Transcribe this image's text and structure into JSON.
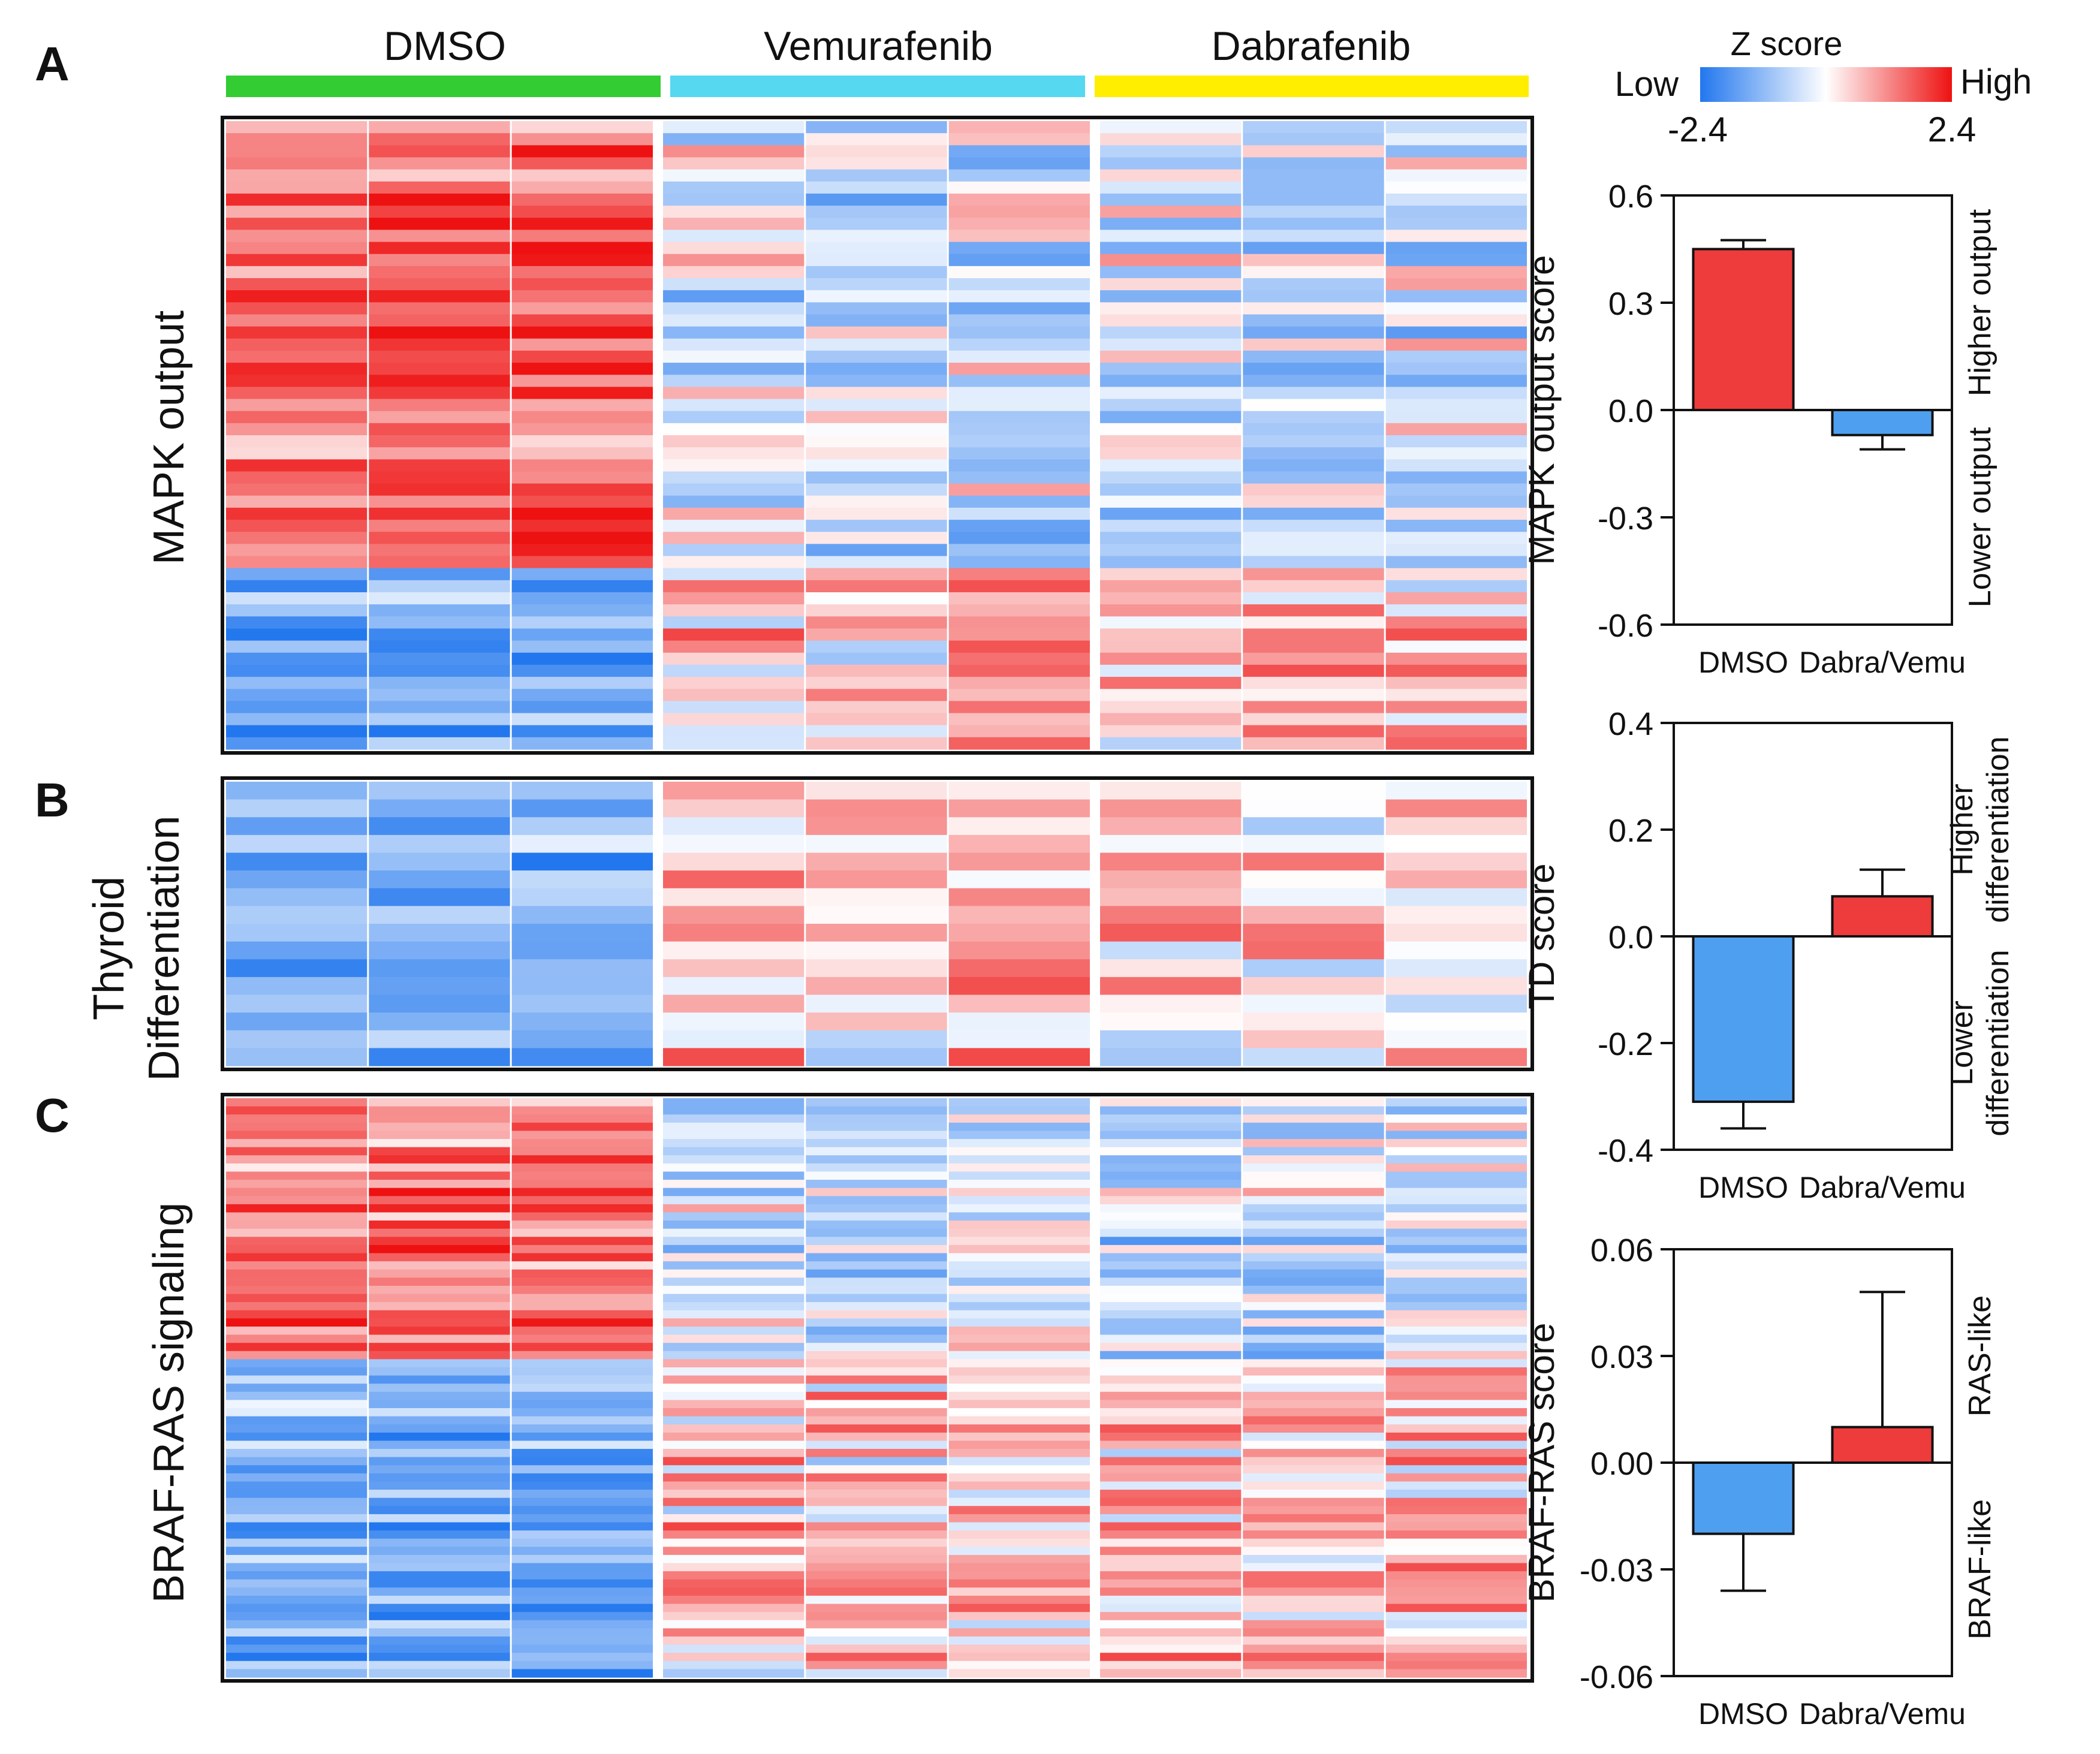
{
  "figure": {
    "groups": [
      {
        "name": "DMSO",
        "color": "#33cc33"
      },
      {
        "name": "Vemurafenib",
        "color": "#55d8f0"
      },
      {
        "name": "Dabrafenib",
        "color": "#ffee00"
      }
    ],
    "legend": {
      "title": "Z score",
      "low_label": "Low",
      "high_label": "High",
      "min_label": "-2.4",
      "max_label": "2.4",
      "low_color": "#2277ee",
      "mid_color": "#ffffff",
      "high_color": "#ee1111",
      "min": -2.4,
      "max": 2.4
    }
  },
  "chart_data": [
    {
      "type": "heatmap",
      "panel_letter": "A",
      "ylabel": "MAPK output",
      "columns": [
        "DMSO",
        "DMSO",
        "DMSO",
        "Vemurafenib",
        "Vemurafenib",
        "Vemurafenib",
        "Dabrafenib",
        "Dabrafenib",
        "Dabrafenib"
      ],
      "n_rows": 52,
      "pattern": "genes 1-37 high in DMSO and low in Vemurafenib/Dabrafenib; genes 38-52 low in DMSO and high in Vemurafenib/Dabrafenib",
      "value_range": [
        -2.4,
        2.4
      ]
    },
    {
      "type": "heatmap",
      "panel_letter": "B",
      "ylabel": [
        "Thyroid",
        "Differentiation"
      ],
      "columns": [
        "DMSO",
        "DMSO",
        "DMSO",
        "Vemurafenib",
        "Vemurafenib",
        "Vemurafenib",
        "Dabrafenib",
        "Dabrafenib",
        "Dabrafenib"
      ],
      "n_rows": 16,
      "pattern": "low in DMSO, high in Vemurafenib and Dabrafenib",
      "value_range": [
        -2.4,
        2.4
      ]
    },
    {
      "type": "heatmap",
      "panel_letter": "C",
      "ylabel": "BRAF-RAS signaling",
      "columns": [
        "DMSO",
        "DMSO",
        "DMSO",
        "Vemurafenib",
        "Vemurafenib",
        "Vemurafenib",
        "Dabrafenib",
        "Dabrafenib",
        "Dabrafenib"
      ],
      "n_rows": 71,
      "pattern": "genes 1-32 high in DMSO and low in treatments; genes 33-71 low in DMSO and high in treatments",
      "value_range": [
        -2.4,
        2.4
      ]
    },
    {
      "type": "bar",
      "ylabel": "MAPK output score",
      "categories": [
        "DMSO",
        "Dabra/Vemu"
      ],
      "values": [
        0.45,
        -0.07
      ],
      "errors": [
        0.025,
        0.04
      ],
      "colors": [
        "#ee3b3b",
        "#4f9ff0"
      ],
      "ylim": [
        -0.6,
        0.6
      ],
      "ticks": [
        0.6,
        0.3,
        0.0,
        -0.3,
        -0.6
      ],
      "tick_labels": [
        "0.6",
        "0.3",
        "0.0",
        "-0.3",
        "-0.6"
      ],
      "upper_note": [
        "Higher output"
      ],
      "lower_note": [
        "Lower output"
      ]
    },
    {
      "type": "bar",
      "ylabel": "TD score",
      "categories": [
        "DMSO",
        "Dabra/Vemu"
      ],
      "values": [
        -0.31,
        0.075
      ],
      "errors": [
        0.05,
        0.05
      ],
      "colors": [
        "#4f9ff0",
        "#ee3b3b"
      ],
      "ylim": [
        -0.4,
        0.4
      ],
      "ticks": [
        0.4,
        0.2,
        0.0,
        -0.2,
        -0.4
      ],
      "tick_labels": [
        "0.4",
        "0.2",
        "0.0",
        "-0.2",
        "-0.4"
      ],
      "upper_note": [
        "Higher",
        "differentiation"
      ],
      "lower_note": [
        "Lower",
        "differentiation"
      ]
    },
    {
      "type": "bar",
      "ylabel": "BRAF-RAS score",
      "categories": [
        "DMSO",
        "Dabra/Vemu"
      ],
      "values": [
        -0.02,
        0.01
      ],
      "errors": [
        0.016,
        0.038
      ],
      "colors": [
        "#4f9ff0",
        "#ee3b3b"
      ],
      "ylim": [
        -0.06,
        0.06
      ],
      "ticks": [
        0.06,
        0.03,
        0.0,
        -0.03,
        -0.06
      ],
      "tick_labels": [
        "0.06",
        "0.03",
        "0.00",
        "-0.03",
        "-0.06"
      ],
      "upper_note": [
        "RAS-like"
      ],
      "lower_note": [
        "BRAF-like"
      ]
    }
  ]
}
